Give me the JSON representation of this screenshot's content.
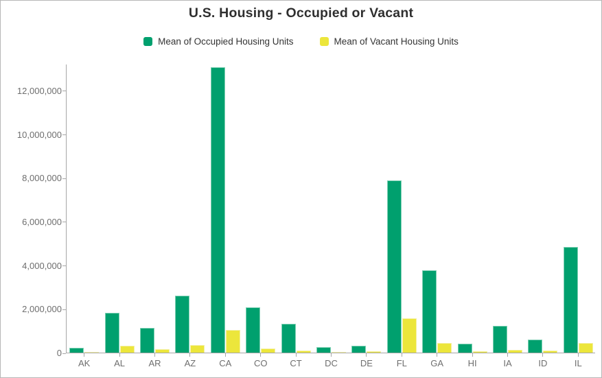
{
  "title": "U.S. Housing - Occupied or Vacant",
  "colors": {
    "occupied_green": "#00a06e",
    "vacant_yellow": "#ece63b",
    "axis_line": "#a6a6a6",
    "axis_label": "#6e6e6e",
    "title_text": "#2f2f2f"
  },
  "chart_data": {
    "type": "bar",
    "title": "U.S. Housing - Occupied or Vacant",
    "xlabel": "",
    "ylabel": "",
    "grid": false,
    "legend_position": "top",
    "ylim": [
      0,
      13225000
    ],
    "yticks": [
      0,
      2000000,
      4000000,
      6000000,
      8000000,
      10000000,
      12000000
    ],
    "categories": [
      "AK",
      "AL",
      "AR",
      "AZ",
      "CA",
      "CO",
      "CT",
      "DC",
      "DE",
      "FL",
      "GA",
      "HI",
      "IA",
      "ID",
      "IL"
    ],
    "series": [
      {
        "name": "Mean of Occupied Housing Units",
        "color": "#00a06e",
        "values": [
          210000,
          1830000,
          1130000,
          2600000,
          13080000,
          2080000,
          1330000,
          240000,
          315000,
          7890000,
          3770000,
          400000,
          1230000,
          590000,
          4830000
        ]
      },
      {
        "name": "Mean of Vacant Housing Units",
        "color": "#ece63b",
        "values": [
          40000,
          330000,
          160000,
          340000,
          1050000,
          190000,
          95000,
          30000,
          50000,
          1570000,
          440000,
          65000,
          125000,
          80000,
          450000
        ]
      }
    ]
  }
}
